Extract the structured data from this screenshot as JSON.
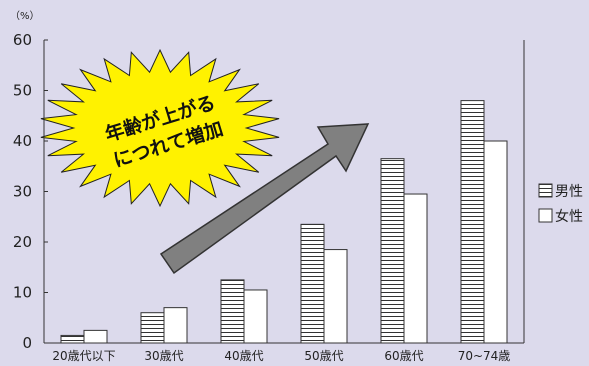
{
  "chart_data": {
    "type": "bar",
    "unit_label": "（%）",
    "categories": [
      "20歳代以下",
      "30歳代",
      "40歳代",
      "50歳代",
      "60歳代",
      "70~74歳"
    ],
    "series": [
      {
        "name": "男性",
        "pattern": "horizontal-stripes",
        "values": [
          1.5,
          6,
          12.5,
          23.5,
          36.5,
          48
        ]
      },
      {
        "name": "女性",
        "pattern": "solid-white",
        "values": [
          2.5,
          7,
          10.5,
          18.5,
          29.5,
          40
        ]
      }
    ],
    "ylim": [
      0,
      60
    ],
    "yticks": [
      0,
      10,
      20,
      30,
      40,
      50,
      60
    ],
    "legend_position": "right",
    "annotation": {
      "lines": [
        "年齢が上がる",
        "につれて増加"
      ],
      "shape": "yellow-starburst",
      "arrow": "gray-upward-diagonal-arrow"
    },
    "colors": {
      "background": "#dcdaec",
      "bar_fill": "#ffffff",
      "stripe": "#333333",
      "burst": "#fff200",
      "arrow": "#808080"
    }
  }
}
